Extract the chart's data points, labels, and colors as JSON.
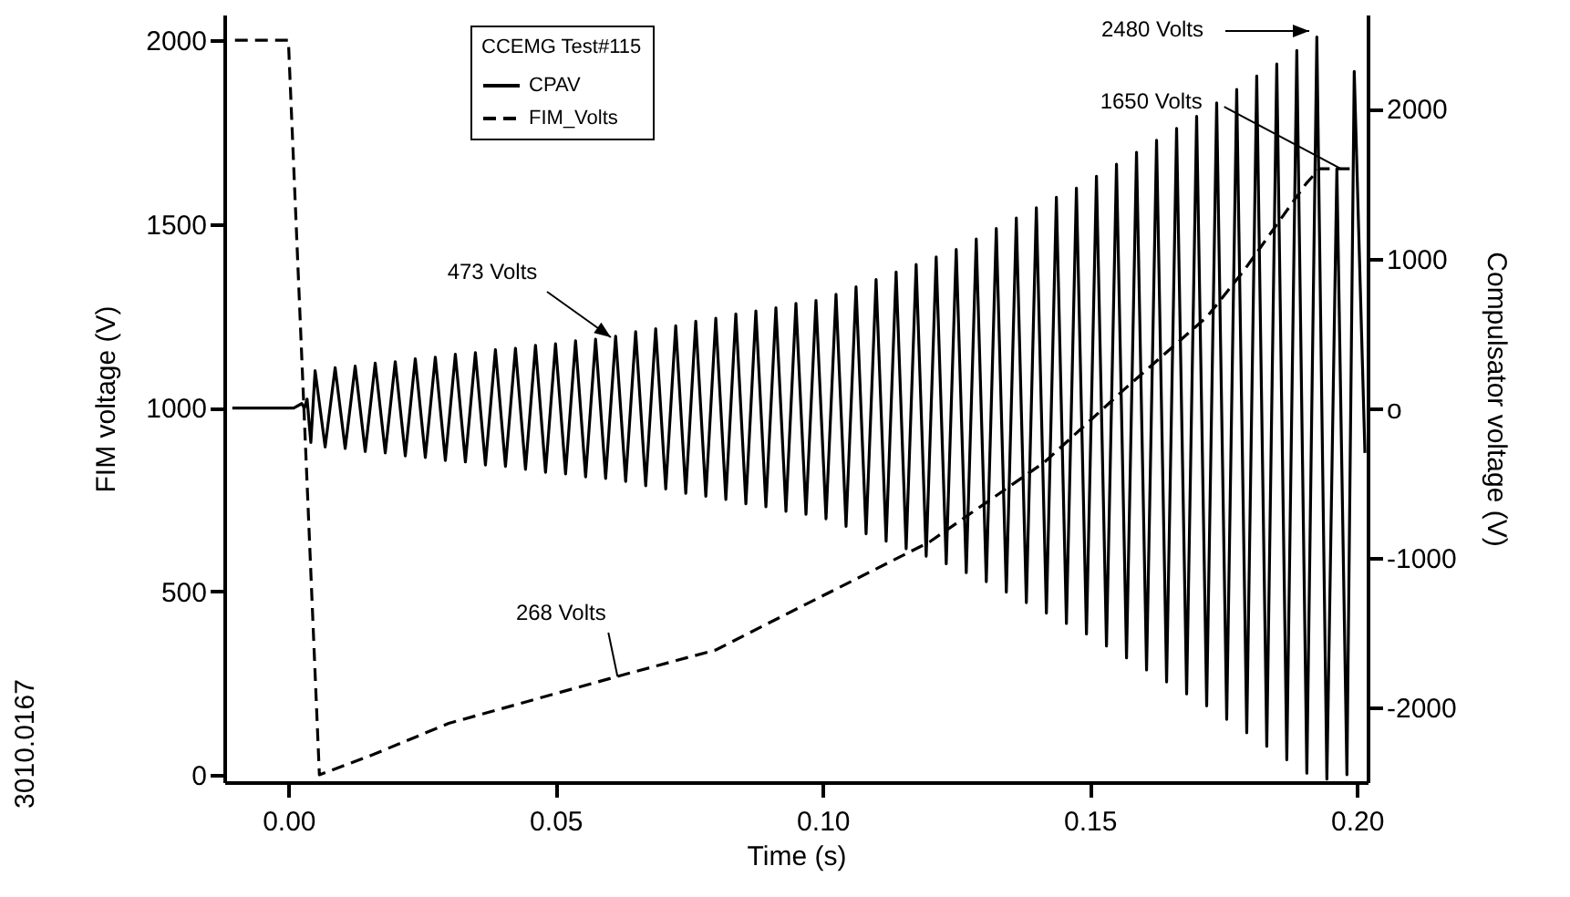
{
  "chart_data": {
    "type": "line",
    "xlabel": "Time (s)",
    "ylabel": "FIM voltage (V)",
    "y2label": "Compulsator voltage (V)",
    "legend_title": "CCEMG Test#115",
    "xlim": [
      -0.012,
      0.202
    ],
    "xticks": [
      {
        "value": 0,
        "label": "0.00"
      },
      0.05,
      {
        "value": 0.1,
        "label": "0.10"
      },
      0.15,
      {
        "value": 0.2,
        "label": "0.20"
      }
    ],
    "ylim": [
      -20,
      2070
    ],
    "yticks": [
      0,
      500,
      1000,
      1500,
      2000
    ],
    "y2lim": [
      -2500,
      2630
    ],
    "y2ticks": [
      -2000,
      -1000,
      {
        "value": 0,
        "label": "o"
      },
      1000,
      2000
    ],
    "grid": false,
    "legend": "top left",
    "marker": "none",
    "series": [
      {
        "name": "CPAV",
        "color": "#000000",
        "axis": "y2",
        "line_style": "solid",
        "x": [
          -0.0105,
          0.001,
          0.0025,
          0.003,
          0.0035,
          0.0042,
          0.005,
          0.00688,
          0.00875,
          0.01063,
          0.0125,
          0.01438,
          0.01625,
          0.01813,
          0.02,
          0.02188,
          0.02375,
          0.02563,
          0.0275,
          0.02938,
          0.03125,
          0.03313,
          0.035,
          0.03688,
          0.03875,
          0.04063,
          0.0425,
          0.04438,
          0.04625,
          0.04813,
          0.05,
          0.05188,
          0.05375,
          0.05563,
          0.0575,
          0.05938,
          0.06125,
          0.06313,
          0.065,
          0.06688,
          0.06875,
          0.07063,
          0.0725,
          0.07438,
          0.07625,
          0.07813,
          0.08,
          0.08188,
          0.08375,
          0.08563,
          0.0875,
          0.08938,
          0.09125,
          0.09313,
          0.095,
          0.09688,
          0.09875,
          0.10063,
          0.1025,
          0.10438,
          0.10625,
          0.10813,
          0.11,
          0.11188,
          0.11375,
          0.11563,
          0.1175,
          0.11938,
          0.12125,
          0.12313,
          0.125,
          0.12688,
          0.12875,
          0.13063,
          0.1325,
          0.13438,
          0.13625,
          0.13813,
          0.14,
          0.14188,
          0.14375,
          0.14563,
          0.1475,
          0.14938,
          0.15125,
          0.15313,
          0.155,
          0.15688,
          0.15875,
          0.16063,
          0.1625,
          0.16438,
          0.16625,
          0.16813,
          0.17,
          0.17188,
          0.17375,
          0.17563,
          0.1775,
          0.17938,
          0.18125,
          0.18313,
          0.185,
          0.18688,
          0.18875,
          0.19063,
          0.1925,
          0.19438,
          0.19625,
          0.19813,
          0.1995,
          0.2015
        ],
        "values": [
          0,
          0,
          30,
          0,
          60,
          -230,
          250,
          -260,
          270,
          -270,
          280,
          -290,
          300,
          -300,
          310,
          -320,
          330,
          -330,
          340,
          -350,
          360,
          -360,
          370,
          -380,
          390,
          -390,
          400,
          -410,
          420,
          -430,
          430,
          -440,
          450,
          -460,
          460,
          -470,
          480,
          -490,
          510,
          -520,
          530,
          -540,
          550,
          -570,
          580,
          -590,
          600,
          -610,
          630,
          -640,
          650,
          -660,
          670,
          -690,
          700,
          -710,
          720,
          -740,
          760,
          -790,
          810,
          -840,
          860,
          -890,
          910,
          -940,
          960,
          -990,
          1010,
          -1040,
          1060,
          -1100,
          1130,
          -1160,
          1200,
          -1230,
          1270,
          -1300,
          1340,
          -1370,
          1410,
          -1440,
          1470,
          -1510,
          1550,
          -1590,
          1630,
          -1670,
          1710,
          -1750,
          1790,
          -1830,
          1870,
          -1910,
          1950,
          -1990,
          2040,
          -2080,
          2130,
          -2170,
          2220,
          -2260,
          2300,
          -2350,
          2390,
          -2440,
          2480,
          -2480,
          1600,
          -2450,
          2250,
          -300
        ]
      },
      {
        "name": "FIM_Volts",
        "color": "#000000",
        "line_style": "dashed",
        "x": [
          -0.01,
          0.0,
          0.0058,
          0.015,
          0.03,
          0.0616,
          0.08,
          0.093,
          0.12,
          0.13,
          0.1415,
          0.1565,
          0.172,
          0.179,
          0.1905,
          0.193,
          0.2
        ],
        "values": [
          2000,
          2000,
          0,
          50,
          140,
          268,
          340,
          436,
          634,
          735,
          851,
          1050,
          1248,
          1376,
          1610,
          1650,
          1650
        ]
      }
    ],
    "annotations": [
      "473 Volts",
      {
        "text": "268 Volts",
        "x": 0.0616,
        "y": 268
      },
      "2480 Volts",
      {
        "text": "1650 Volts",
        "x": 0.197,
        "y": 1650
      },
      "3010.0167"
    ]
  }
}
